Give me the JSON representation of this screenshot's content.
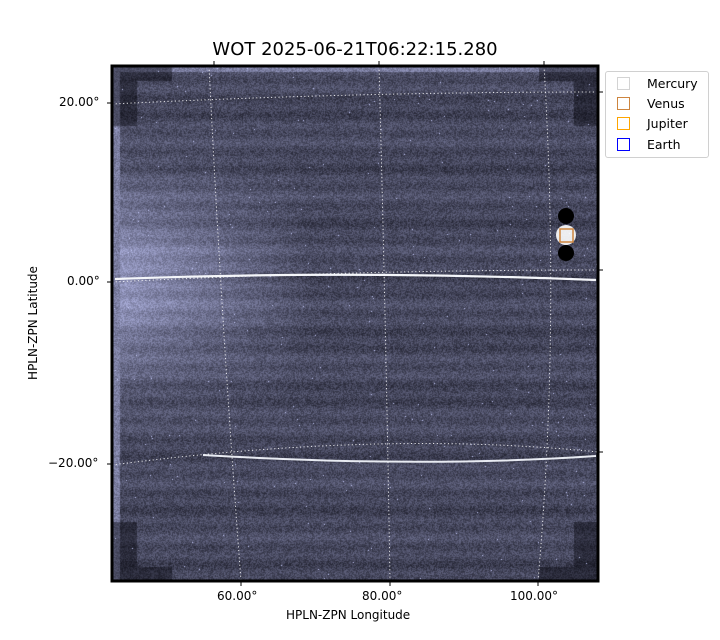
{
  "chart_data": {
    "type": "heatmap",
    "title": "WOT 2025-06-21T06:22:15.280",
    "xlabel": "HPLN-ZPN Longitude",
    "ylabel": "HPLN-ZPN Latitude",
    "x_ticks": [
      "60.00°",
      "80.00°",
      "100.00°"
    ],
    "y_ticks": [
      "20.00°",
      "0.00°",
      "−20.00°"
    ],
    "grid": true,
    "colormap": "bone",
    "legend_position": "outside-top-right",
    "legend": [
      {
        "name": "Mercury",
        "color": "#d3d3d3"
      },
      {
        "name": "Venus",
        "color": "#cd853f"
      },
      {
        "name": "Jupiter",
        "color": "#ffa500"
      },
      {
        "name": "Earth",
        "color": "#0000ff"
      }
    ],
    "markers": [
      {
        "name": "Venus",
        "lon": 104,
        "lat": 5.5
      }
    ]
  }
}
